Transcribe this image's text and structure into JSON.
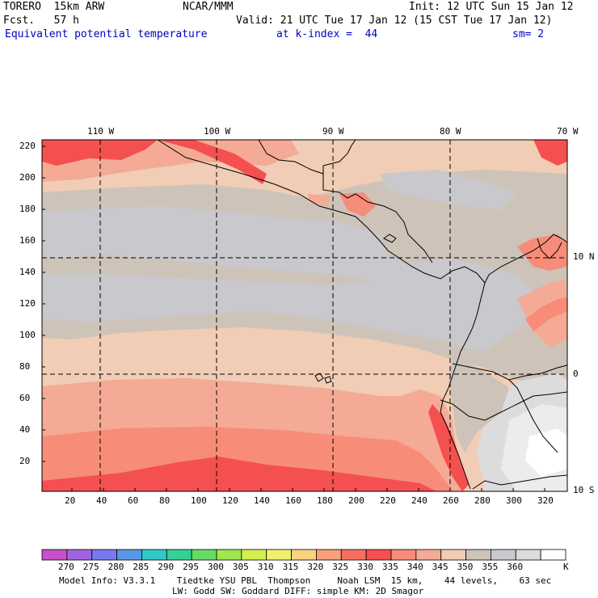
{
  "header": {
    "model": "TORERO  15km ARW",
    "org": "NCAR/MMM",
    "init": "Init: 12 UTC Sun 15 Jan 12",
    "fcst": "Fcst.   57 h",
    "valid": "Valid: 21 UTC Tue 17 Jan 12 (15 CST Tue 17 Jan 12)",
    "field": "Equivalent potential temperature",
    "level": "at k-index =  44",
    "smooth": "sm= 2"
  },
  "map": {
    "lon_labels": [
      "110 W",
      "100 W",
      "90 W",
      "80 W",
      "70 W"
    ],
    "lat_labels": [
      "10 N",
      "0",
      "10 S"
    ],
    "y_ticks": [
      "220",
      "200",
      "180",
      "160",
      "140",
      "120",
      "100",
      "80",
      "60",
      "40",
      "20"
    ],
    "x_ticks": [
      "20",
      "40",
      "60",
      "80",
      "100",
      "120",
      "140",
      "160",
      "180",
      "200",
      "220",
      "240",
      "260",
      "280",
      "300",
      "320"
    ]
  },
  "colorbar": {
    "labels": [
      "270",
      "275",
      "280",
      "285",
      "290",
      "295",
      "300",
      "305",
      "310",
      "315",
      "320",
      "325",
      "330",
      "335",
      "340",
      "345",
      "350",
      "355",
      "360"
    ],
    "unit": "K",
    "colors": [
      "#c850c8",
      "#a064dc",
      "#7878f0",
      "#5a96e6",
      "#32c8c8",
      "#32d296",
      "#64dc64",
      "#a0e650",
      "#d2f050",
      "#f0f06e",
      "#fad282",
      "#f7a07a",
      "#f7705f",
      "#f55050",
      "#f78c78",
      "#f5aa96",
      "#f0cdb4",
      "#cdc3b9",
      "#c8c8cd",
      "#dcdcdc",
      "#ffffff"
    ]
  },
  "footer": {
    "line1": "Model Info: V3.3.1    Tiedtke YSU PBL  Thompson     Noah LSM  15 km,    44 levels,    63 sec",
    "line2": "LW: Godd SW: Goddard DIFF: simple KM: 2D Smagor"
  }
}
